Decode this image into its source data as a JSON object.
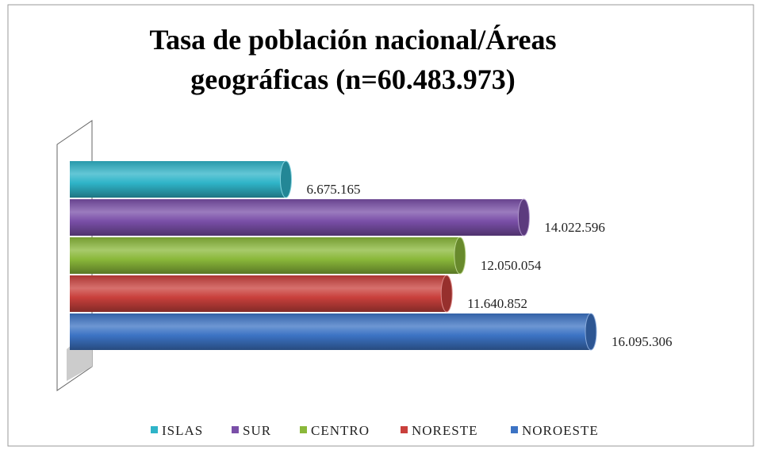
{
  "chart_data": {
    "type": "bar",
    "title": [
      "Tasa de población nacional/Áreas",
      "geográficas (n=60.483.973)"
    ],
    "categories": [
      "ISLAS",
      "SUR",
      "CENTRO",
      "NORESTE",
      "NOROESTE"
    ],
    "values": [
      6675165,
      14022596,
      12050054,
      11640852,
      16095306
    ],
    "value_labels": [
      "6.675.165",
      "14.022.596",
      "12.050.054",
      "11.640.852",
      "16.095.306"
    ],
    "colors": [
      "#2fb4c8",
      "#7a4fa8",
      "#8ab83a",
      "#c9403c",
      "#3c73c4"
    ]
  }
}
